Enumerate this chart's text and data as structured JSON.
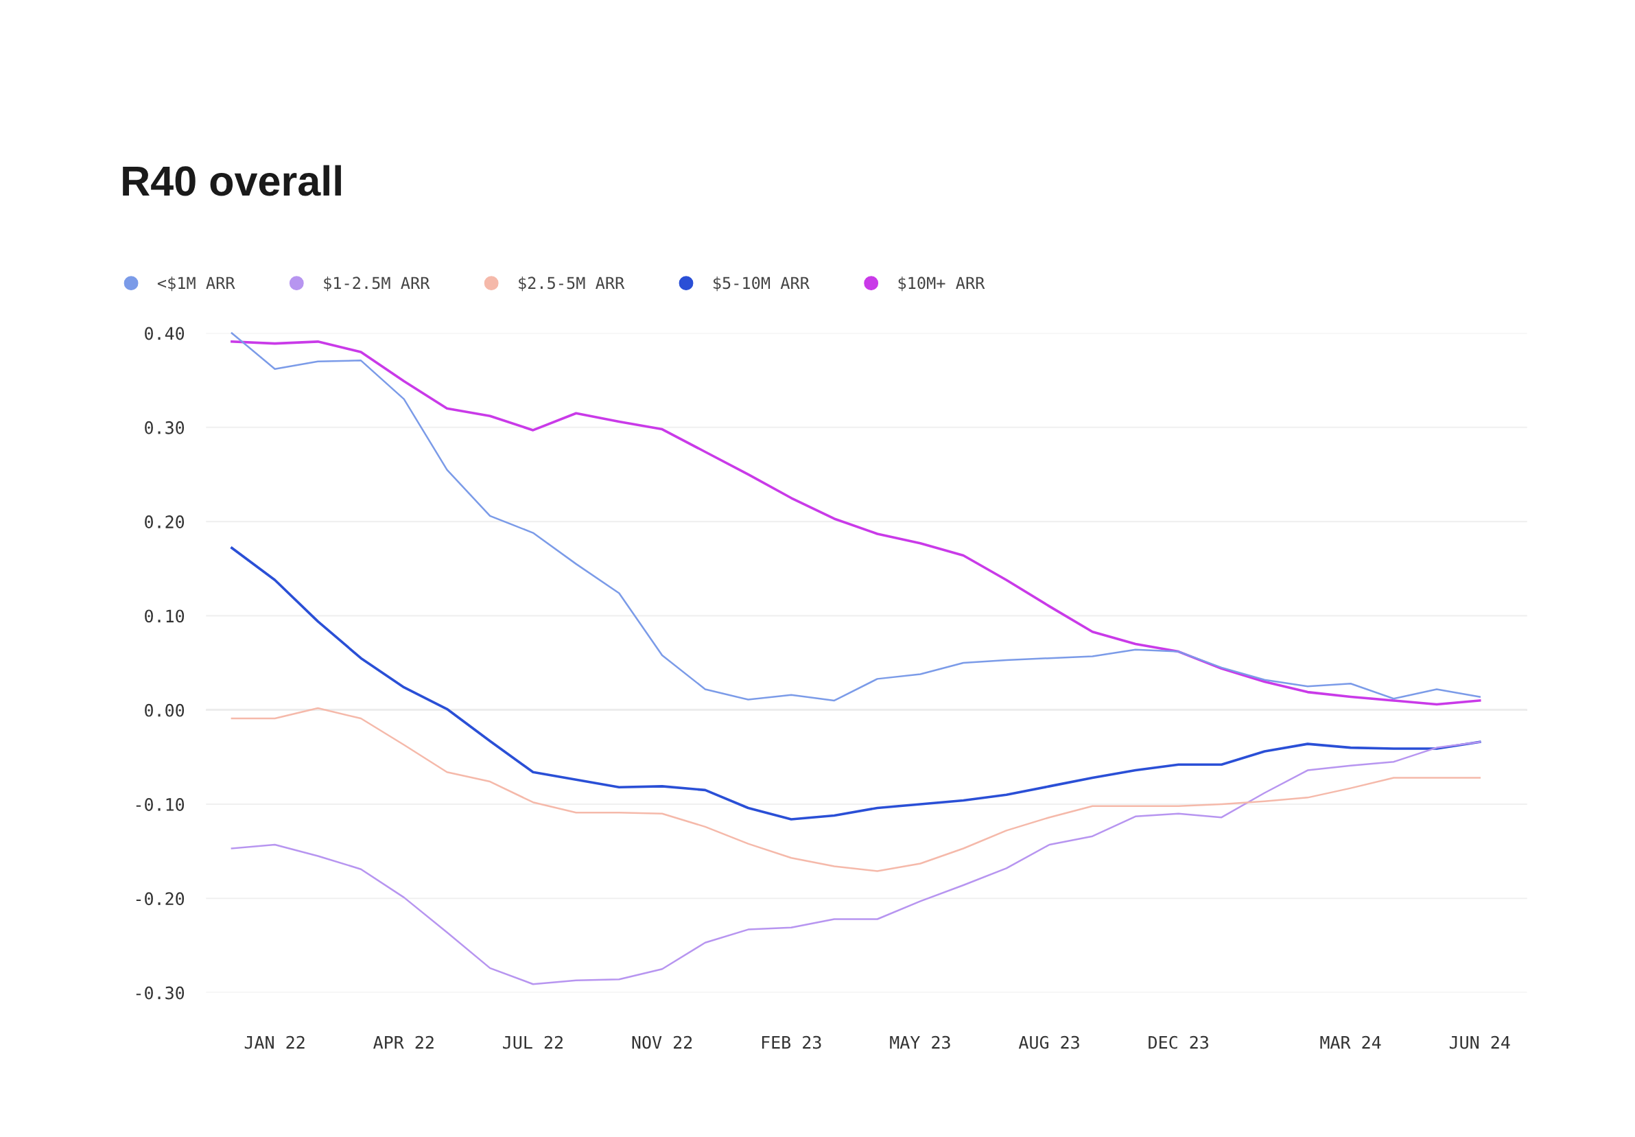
{
  "chart_data": {
    "type": "line",
    "title": "R40 overall",
    "categories": [
      null,
      "JAN 22",
      null,
      null,
      "APR 22",
      null,
      null,
      "JUL 22",
      null,
      null,
      "NOV 22",
      null,
      null,
      "FEB 23",
      null,
      null,
      "MAY 23",
      null,
      null,
      "AUG 23",
      null,
      null,
      "DEC 23",
      null,
      null,
      null,
      "MAR 24",
      null,
      null,
      "JUN 24"
    ],
    "series": [
      {
        "name": "<$1M ARR",
        "color": "#7b9be8",
        "values": [
          0.4,
          0.362,
          0.37,
          0.371,
          0.33,
          0.255,
          0.206,
          0.188,
          0.155,
          0.124,
          0.058,
          0.022,
          0.011,
          0.016,
          0.01,
          0.033,
          0.038,
          0.05,
          0.053,
          0.055,
          0.057,
          0.064,
          0.062,
          0.045,
          0.032,
          0.025,
          0.028,
          0.012,
          0.022,
          0.014
        ]
      },
      {
        "name": "$1-2.5M ARR",
        "color": "#b795f0",
        "values": [
          -0.147,
          -0.143,
          -0.155,
          -0.169,
          -0.199,
          -0.236,
          -0.274,
          -0.291,
          -0.287,
          -0.286,
          -0.275,
          -0.247,
          -0.233,
          -0.231,
          -0.222,
          -0.222,
          -0.203,
          -0.186,
          -0.168,
          -0.143,
          -0.134,
          -0.113,
          -0.11,
          -0.114,
          -0.088,
          -0.064,
          -0.059,
          -0.055,
          -0.04,
          -0.034
        ]
      },
      {
        "name": "$2.5-5M ARR",
        "color": "#f5b9aa",
        "values": [
          -0.009,
          -0.009,
          0.002,
          -0.009,
          -0.037,
          -0.066,
          -0.076,
          -0.098,
          -0.109,
          -0.109,
          -0.11,
          -0.124,
          -0.142,
          -0.157,
          -0.166,
          -0.171,
          -0.163,
          -0.147,
          -0.128,
          -0.114,
          -0.102,
          -0.102,
          -0.102,
          -0.1,
          -0.097,
          -0.093,
          -0.083,
          -0.072,
          -0.072,
          -0.072
        ]
      },
      {
        "name": "$5-10M ARR",
        "color": "#2a4fd6",
        "values": [
          0.172,
          0.138,
          0.094,
          0.055,
          0.024,
          0.001,
          -0.033,
          -0.066,
          -0.074,
          -0.082,
          -0.081,
          -0.085,
          -0.104,
          -0.116,
          -0.112,
          -0.104,
          -0.1,
          -0.096,
          -0.09,
          -0.081,
          -0.072,
          -0.064,
          -0.058,
          -0.058,
          -0.044,
          -0.036,
          -0.04,
          -0.041,
          -0.041,
          -0.034
        ]
      },
      {
        "name": "$10M+ ARR",
        "color": "#c93ae8",
        "values": [
          0.391,
          0.389,
          0.391,
          0.38,
          0.349,
          0.32,
          0.312,
          0.297,
          0.315,
          0.306,
          0.298,
          0.274,
          0.25,
          0.225,
          0.203,
          0.187,
          0.177,
          0.164,
          0.138,
          0.11,
          0.083,
          0.07,
          0.062,
          0.044,
          0.03,
          0.019,
          0.014,
          0.01,
          0.006,
          0.01
        ]
      }
    ],
    "ylim": [
      -0.3,
      0.4
    ],
    "yticks": [
      {
        "value": 0.4,
        "label": "0.40"
      },
      {
        "value": 0.3,
        "label": "0.30"
      },
      {
        "value": 0.2,
        "label": "0.20"
      },
      {
        "value": 0.1,
        "label": "0.10"
      },
      {
        "value": 0.0,
        "label": "0.00"
      },
      {
        "value": -0.1,
        "label": "-0.10"
      },
      {
        "value": -0.2,
        "label": "-0.20"
      },
      {
        "value": -0.3,
        "label": "-0.30"
      }
    ],
    "ref_lines": [
      {
        "axis": "y",
        "value": 0,
        "color": "#dddddd"
      }
    ],
    "grid": "y",
    "legend": "top left",
    "marker": "none",
    "line_style": "solid"
  }
}
